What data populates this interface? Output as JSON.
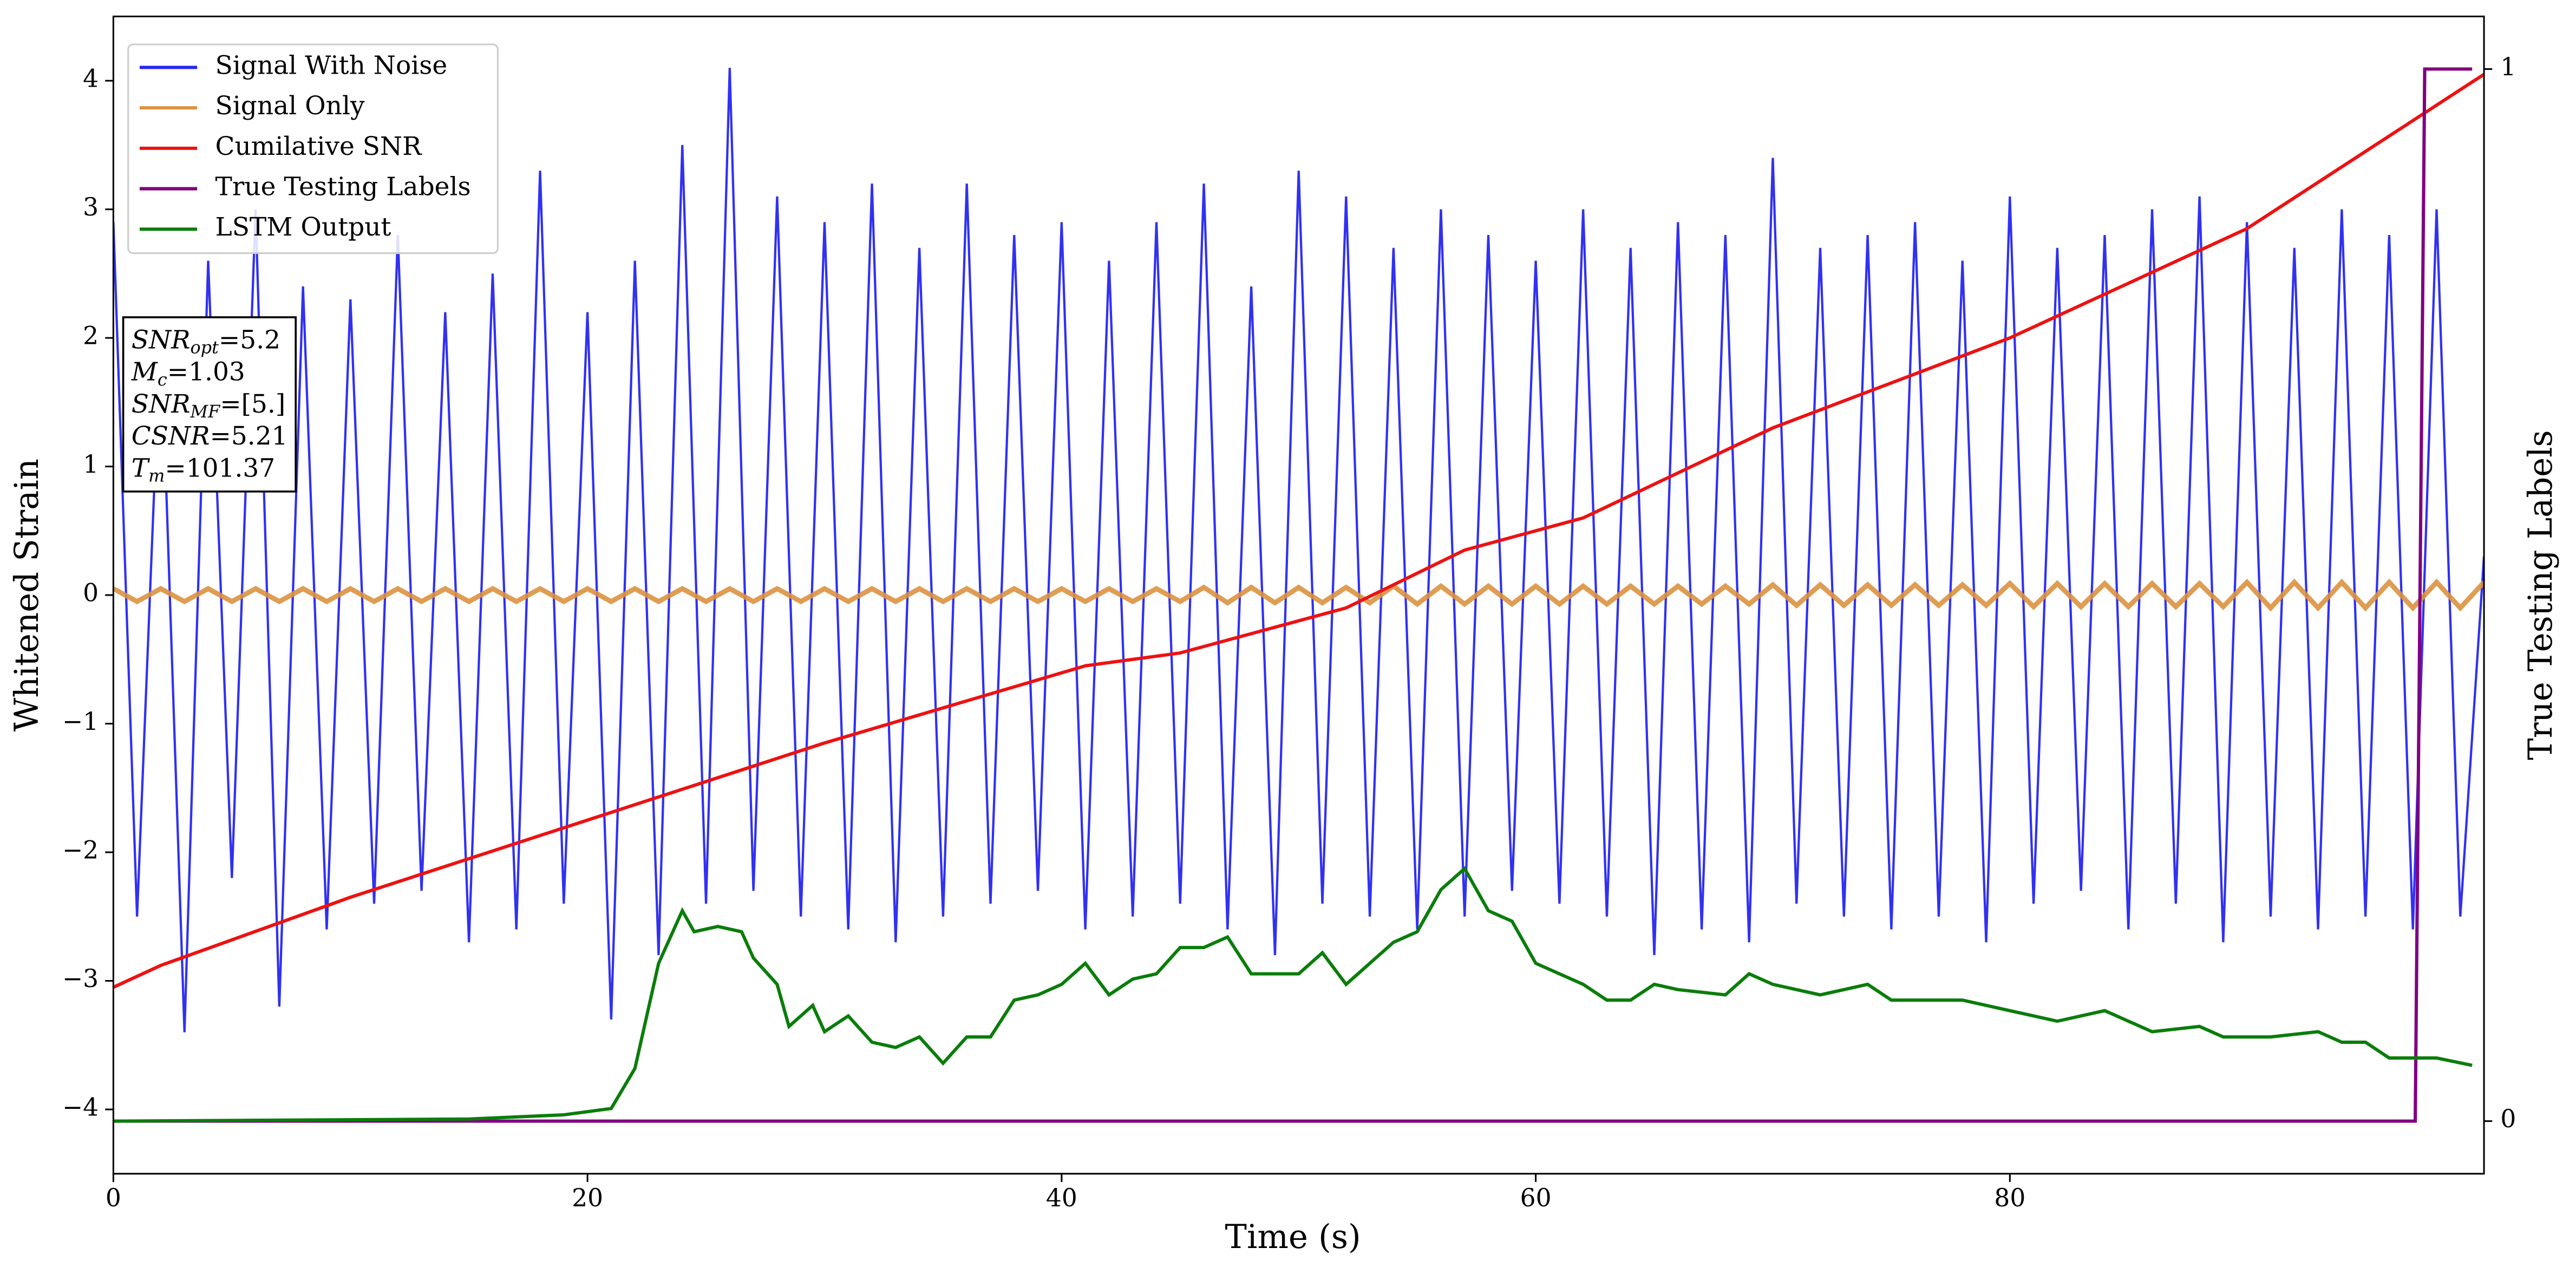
{
  "chart_data": {
    "type": "line",
    "xlabel": "Time (s)",
    "ylabel": "Whitened Strain",
    "y2label": "True Testing Labels",
    "xlim": [
      0,
      100
    ],
    "ylim": [
      -4.5,
      4.5
    ],
    "y2lim": [
      -0.05,
      1.05
    ],
    "xticks": [
      0,
      20,
      40,
      60,
      80
    ],
    "yticks": [
      {
        "value": -4,
        "label": "−4"
      },
      {
        "value": -3,
        "label": "−3"
      },
      {
        "value": -2,
        "label": "−2"
      },
      {
        "value": -1,
        "label": "−1"
      },
      0,
      1,
      2,
      3,
      4
    ],
    "y2ticks": [
      0,
      1
    ],
    "legend": "upper left",
    "annotation": [
      {
        "main": "SNR",
        "sub": "opt",
        "rest": "=5.2"
      },
      {
        "main": "M",
        "sub": "c",
        "rest": "=1.03"
      },
      {
        "main": "SNR",
        "sub": "MF",
        "rest": "=[5.]"
      },
      {
        "main": "CSNR",
        "rest": "=5.21"
      },
      {
        "main": "T",
        "sub": "m",
        "rest": "=101.37"
      }
    ],
    "series": [
      {
        "name": "Signal With Noise",
        "color": "#2626f2",
        "axis": "y",
        "x": [
          0,
          1,
          2,
          3,
          4,
          5,
          6,
          7,
          8,
          9,
          10,
          11,
          12,
          13,
          14,
          15,
          16,
          17,
          18,
          19,
          20,
          21,
          22,
          23,
          24,
          25,
          26,
          27,
          28,
          29,
          30,
          31,
          32,
          33,
          34,
          35,
          36,
          37,
          38,
          39,
          40,
          41,
          42,
          43,
          44,
          45,
          46,
          47,
          48,
          49,
          50,
          51,
          52,
          53,
          54,
          55,
          56,
          57,
          58,
          59,
          60,
          61,
          62,
          63,
          64,
          65,
          66,
          67,
          68,
          69,
          70,
          71,
          72,
          73,
          74,
          75,
          76,
          77,
          78,
          79,
          80,
          81,
          82,
          83,
          84,
          85,
          86,
          87,
          88,
          89,
          90,
          91,
          92,
          93,
          94,
          95,
          96,
          97,
          98,
          99,
          100
        ],
        "values": [
          2.9,
          -2.5,
          2.1,
          -3.4,
          2.6,
          -2.2,
          3.0,
          -3.2,
          2.4,
          -2.6,
          2.3,
          -2.4,
          2.8,
          -2.3,
          2.2,
          -2.7,
          2.5,
          -2.6,
          3.3,
          -2.4,
          2.2,
          -3.3,
          2.6,
          -2.8,
          3.5,
          -2.4,
          4.1,
          -2.3,
          3.1,
          -2.5,
          2.9,
          -2.6,
          3.2,
          -2.7,
          2.7,
          -2.5,
          3.2,
          -2.4,
          2.8,
          -2.3,
          2.9,
          -2.6,
          2.6,
          -2.5,
          2.9,
          -2.4,
          3.2,
          -2.6,
          2.4,
          -2.8,
          3.3,
          -2.4,
          3.1,
          -2.5,
          2.7,
          -2.6,
          3.0,
          -2.5,
          2.8,
          -2.3,
          2.6,
          -2.4,
          3.0,
          -2.5,
          2.7,
          -2.8,
          2.9,
          -2.6,
          2.8,
          -2.7,
          3.4,
          -2.4,
          2.7,
          -2.5,
          2.8,
          -2.6,
          2.9,
          -2.5,
          2.6,
          -2.7,
          3.1,
          -2.4,
          2.7,
          -2.3,
          2.8,
          -2.6,
          3.0,
          -2.4,
          3.1,
          -2.7,
          2.9,
          -2.5,
          2.7,
          -2.6,
          3.0,
          -2.5,
          2.8,
          -2.6,
          3.0,
          -2.5,
          0.3
        ]
      },
      {
        "name": "Signal Only",
        "color": "#dc9240",
        "axis": "y",
        "x": [
          0,
          1,
          2,
          3,
          4,
          5,
          6,
          7,
          8,
          9,
          10,
          11,
          12,
          13,
          14,
          15,
          16,
          17,
          18,
          19,
          20,
          21,
          22,
          23,
          24,
          25,
          26,
          27,
          28,
          29,
          30,
          31,
          32,
          33,
          34,
          35,
          36,
          37,
          38,
          39,
          40,
          41,
          42,
          43,
          44,
          45,
          46,
          47,
          48,
          49,
          50,
          51,
          52,
          53,
          54,
          55,
          56,
          57,
          58,
          59,
          60,
          61,
          62,
          63,
          64,
          65,
          66,
          67,
          68,
          69,
          70,
          71,
          72,
          73,
          74,
          75,
          76,
          77,
          78,
          79,
          80,
          81,
          82,
          83,
          84,
          85,
          86,
          87,
          88,
          89,
          90,
          91,
          92,
          93,
          94,
          95,
          96,
          97,
          98,
          99,
          100
        ],
        "values": [
          0.05,
          -0.05,
          0.05,
          -0.05,
          0.05,
          -0.05,
          0.05,
          -0.05,
          0.05,
          -0.05,
          0.05,
          -0.05,
          0.05,
          -0.05,
          0.05,
          -0.05,
          0.05,
          -0.05,
          0.05,
          -0.05,
          0.05,
          -0.05,
          0.05,
          -0.05,
          0.05,
          -0.05,
          0.05,
          -0.05,
          0.05,
          -0.05,
          0.05,
          -0.05,
          0.05,
          -0.05,
          0.05,
          -0.05,
          0.05,
          -0.05,
          0.05,
          -0.05,
          0.05,
          -0.05,
          0.05,
          -0.05,
          0.05,
          -0.05,
          0.06,
          -0.06,
          0.06,
          -0.06,
          0.06,
          -0.06,
          0.06,
          -0.06,
          0.07,
          -0.07,
          0.07,
          -0.07,
          0.07,
          -0.07,
          0.07,
          -0.07,
          0.07,
          -0.07,
          0.07,
          -0.07,
          0.07,
          -0.07,
          0.07,
          -0.07,
          0.08,
          -0.08,
          0.08,
          -0.08,
          0.08,
          -0.08,
          0.08,
          -0.08,
          0.08,
          -0.08,
          0.09,
          -0.09,
          0.09,
          -0.09,
          0.09,
          -0.09,
          0.09,
          -0.09,
          0.09,
          -0.09,
          0.1,
          -0.1,
          0.1,
          -0.1,
          0.1,
          -0.1,
          0.1,
          -0.1,
          0.1,
          -0.1,
          0.1
        ]
      },
      {
        "name": "Cumilative SNR",
        "color": "#ee1111",
        "axis": "y",
        "x": [
          0,
          2,
          10,
          20,
          30,
          41,
          45,
          52,
          57,
          62,
          70,
          80,
          90,
          100
        ],
        "values": [
          -3.05,
          -2.88,
          -2.35,
          -1.75,
          -1.15,
          -0.55,
          -0.45,
          -0.1,
          0.35,
          0.6,
          1.3,
          2.0,
          2.85,
          4.05
        ]
      },
      {
        "name": "True Testing Labels",
        "color": "#800080",
        "axis": "y2",
        "x": [
          0,
          97.1,
          97.5,
          99.5
        ],
        "values": [
          0,
          0,
          1,
          1
        ]
      },
      {
        "name": "LSTM Output",
        "color": "#0a7d0a",
        "axis": "y2",
        "x": [
          0,
          15,
          19,
          21,
          22,
          23,
          24,
          24.5,
          25.5,
          26.5,
          27,
          28,
          28.5,
          29.5,
          30,
          31,
          32,
          33,
          34,
          35,
          36,
          37,
          38,
          39,
          40,
          41,
          42,
          43,
          44,
          45,
          46,
          47,
          48,
          50,
          51,
          52,
          53,
          54,
          55,
          56,
          57,
          58,
          59,
          60,
          62,
          63,
          64,
          65,
          66,
          68,
          69,
          70,
          72,
          74,
          75,
          78,
          80,
          82,
          84,
          86,
          88,
          89,
          91,
          93,
          94,
          95,
          96,
          98,
          99.5
        ],
        "values": [
          0,
          0.002,
          0.006,
          0.012,
          0.05,
          0.15,
          0.2,
          0.18,
          0.185,
          0.18,
          0.155,
          0.13,
          0.09,
          0.11,
          0.085,
          0.1,
          0.075,
          0.07,
          0.08,
          0.055,
          0.08,
          0.08,
          0.115,
          0.12,
          0.13,
          0.15,
          0.12,
          0.135,
          0.14,
          0.165,
          0.165,
          0.175,
          0.14,
          0.14,
          0.16,
          0.13,
          0.15,
          0.17,
          0.18,
          0.22,
          0.24,
          0.2,
          0.19,
          0.15,
          0.13,
          0.115,
          0.115,
          0.13,
          0.125,
          0.12,
          0.14,
          0.13,
          0.12,
          0.13,
          0.115,
          0.115,
          0.105,
          0.095,
          0.105,
          0.085,
          0.09,
          0.08,
          0.08,
          0.085,
          0.075,
          0.075,
          0.06,
          0.06,
          0.053
        ]
      }
    ]
  }
}
